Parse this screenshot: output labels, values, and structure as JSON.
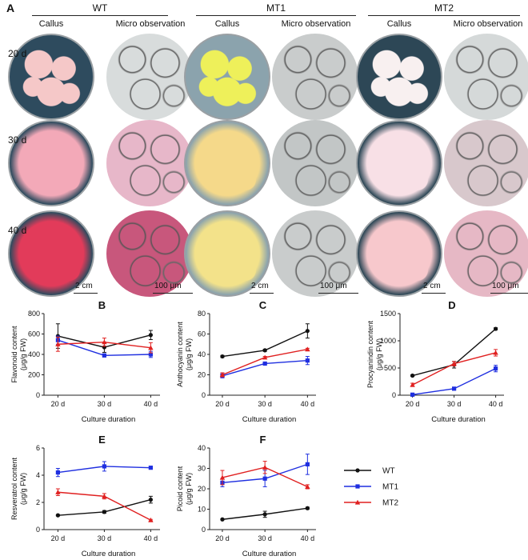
{
  "figure": {
    "panel_a": "A",
    "groups": [
      {
        "name": "WT",
        "col1": "Callus",
        "col2": "Micro observation"
      },
      {
        "name": "MT1",
        "col1": "Callus",
        "col2": "Micro observation"
      },
      {
        "name": "MT2",
        "col1": "Callus",
        "col2": "Micro observation"
      }
    ],
    "rows": [
      "20 d",
      "30 d",
      "40 d"
    ],
    "scale_callus": "2 cm",
    "scale_micro": "100  μm",
    "colors": {
      "WT": "#111111",
      "MT1": "#1f2fe0",
      "MT2": "#e02020"
    }
  },
  "legend": {
    "items": [
      "WT",
      "MT1",
      "MT2"
    ],
    "placement": "right of panel F"
  },
  "chart_data": [
    {
      "type": "line",
      "title": "B",
      "xlabel": "Culture duration",
      "ylabel": [
        "Flavonoid content",
        "(μg/g FW)"
      ],
      "categories": [
        "20 d",
        "30 d",
        "40 d"
      ],
      "ylim": [
        0,
        800
      ],
      "yticks": [
        0,
        200,
        400,
        600,
        800
      ],
      "series": [
        {
          "name": "WT",
          "values": [
            580,
            470,
            590
          ],
          "err": [
            120,
            50,
            45
          ]
        },
        {
          "name": "MT1",
          "values": [
            540,
            390,
            400
          ],
          "err": [
            40,
            15,
            30
          ]
        },
        {
          "name": "MT2",
          "values": [
            500,
            520,
            465
          ],
          "err": [
            70,
            40,
            50
          ]
        }
      ]
    },
    {
      "type": "line",
      "title": "C",
      "xlabel": "Culture duration",
      "ylabel": [
        "Anthocyanin content",
        "(μg/g FW)"
      ],
      "categories": [
        "20 d",
        "30 d",
        "40 d"
      ],
      "ylim": [
        0,
        80
      ],
      "yticks": [
        0,
        20,
        40,
        60,
        80
      ],
      "series": [
        {
          "name": "WT",
          "values": [
            38,
            44,
            63
          ],
          "err": [
            1,
            1,
            7
          ]
        },
        {
          "name": "MT1",
          "values": [
            19,
            31,
            34
          ],
          "err": [
            2,
            1,
            4
          ]
        },
        {
          "name": "MT2",
          "values": [
            20,
            37,
            45
          ],
          "err": [
            2,
            1,
            1
          ]
        }
      ]
    },
    {
      "type": "line",
      "title": "D",
      "xlabel": "Culture duration",
      "ylabel": [
        "Procyanindin content",
        "(μg/g FW)"
      ],
      "categories": [
        "20 d",
        "30 d",
        "40 d"
      ],
      "ylim": [
        0,
        1500
      ],
      "yticks": [
        0,
        500,
        1000,
        1500
      ],
      "series": [
        {
          "name": "WT",
          "values": [
            360,
            560,
            1220
          ],
          "err": [
            15,
            60,
            20
          ]
        },
        {
          "name": "MT1",
          "values": [
            10,
            120,
            490
          ],
          "err": [
            5,
            15,
            60
          ]
        },
        {
          "name": "MT2",
          "values": [
            190,
            580,
            780
          ],
          "err": [
            30,
            40,
            60
          ]
        }
      ]
    },
    {
      "type": "line",
      "title": "E",
      "xlabel": "Culture duration",
      "ylabel": [
        "Resveratrol content",
        "(μg/g FW)"
      ],
      "categories": [
        "20 d",
        "30 d",
        "40 d"
      ],
      "ylim": [
        0,
        6
      ],
      "yticks": [
        0,
        2,
        4,
        6
      ],
      "series": [
        {
          "name": "WT",
          "values": [
            1.05,
            1.3,
            2.2
          ],
          "err": [
            0.05,
            0.1,
            0.25
          ]
        },
        {
          "name": "MT1",
          "values": [
            4.2,
            4.65,
            4.55
          ],
          "err": [
            0.3,
            0.35,
            0.1
          ]
        },
        {
          "name": "MT2",
          "values": [
            2.75,
            2.45,
            0.7
          ],
          "err": [
            0.25,
            0.2,
            0.05
          ]
        }
      ]
    },
    {
      "type": "line",
      "title": "F",
      "xlabel": "Culture duration",
      "ylabel": [
        "Picoid content",
        "(μg/g FW)"
      ],
      "categories": [
        "20 d",
        "30 d",
        "40 d"
      ],
      "ylim": [
        0,
        40
      ],
      "yticks": [
        0,
        10,
        20,
        30,
        40
      ],
      "series": [
        {
          "name": "WT",
          "values": [
            5,
            7.5,
            10.5
          ],
          "err": [
            0.3,
            1.5,
            0.5
          ]
        },
        {
          "name": "MT1",
          "values": [
            23,
            25,
            32
          ],
          "err": [
            2,
            4,
            5
          ]
        },
        {
          "name": "MT2",
          "values": [
            25.5,
            30.5,
            21
          ],
          "err": [
            3.5,
            3,
            1
          ]
        }
      ]
    }
  ]
}
